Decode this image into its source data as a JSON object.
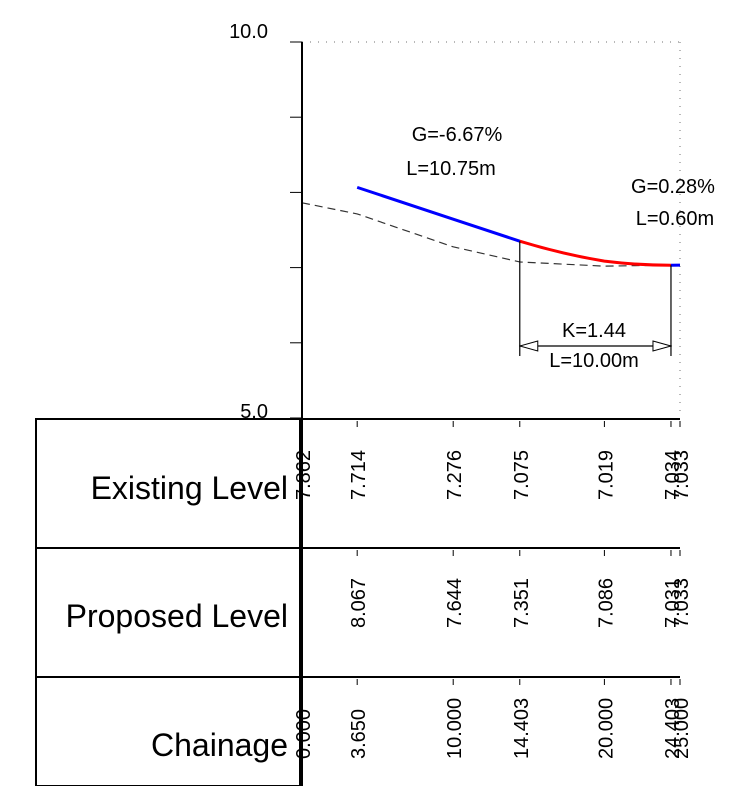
{
  "profile": {
    "y_axis": {
      "top_label": "10.0",
      "bottom_label": "5.0",
      "range": [
        5.0,
        10.0
      ],
      "tick_step": 1.0
    },
    "x_range": [
      0,
      25
    ],
    "colors": {
      "straight_grade": "#0000ff",
      "vertical_curve": "#ff0000",
      "existing_ground": "#000000",
      "grid": "#000000",
      "background": "#ffffff"
    },
    "grade_1": {
      "gradient_text": "G=-6.67%",
      "length_text": "L=10.75m"
    },
    "grade_2": {
      "gradient_text": "G=0.28%",
      "length_text": "L=0.60m"
    },
    "curve": {
      "k_text": "K=1.44",
      "length_text": "L=10.00m",
      "start_chainage": 14.403,
      "end_chainage": 24.403
    }
  },
  "chart_data": {
    "type": "line",
    "x_axis": "chainage",
    "ylim": [
      5.0,
      10.0
    ],
    "xlim": [
      0,
      25
    ],
    "series": [
      {
        "name": "Existing Level",
        "x": [
          0.0,
          3.65,
          10.0,
          14.403,
          20.0,
          24.403,
          25.0
        ],
        "y": [
          7.862,
          7.714,
          7.276,
          7.075,
          7.019,
          7.034,
          7.033
        ]
      },
      {
        "name": "Proposed Level",
        "x": [
          3.65,
          10.0,
          14.403,
          20.0,
          24.403,
          25.0
        ],
        "y": [
          8.067,
          7.644,
          7.351,
          7.086,
          7.031,
          7.033
        ]
      }
    ]
  },
  "band_table": {
    "rows": [
      {
        "label": "Existing Level",
        "entries": [
          {
            "chainage": 0.0,
            "text": "7.862"
          },
          {
            "chainage": 3.65,
            "text": "7.714"
          },
          {
            "chainage": 10.0,
            "text": "7.276"
          },
          {
            "chainage": 14.403,
            "text": "7.075"
          },
          {
            "chainage": 20.0,
            "text": "7.019"
          },
          {
            "chainage": 24.403,
            "text": "7.034"
          },
          {
            "chainage": 25.0,
            "text": "7.033"
          }
        ]
      },
      {
        "label": "Proposed Level",
        "entries": [
          {
            "chainage": 3.65,
            "text": "8.067"
          },
          {
            "chainage": 10.0,
            "text": "7.644"
          },
          {
            "chainage": 14.403,
            "text": "7.351"
          },
          {
            "chainage": 20.0,
            "text": "7.086"
          },
          {
            "chainage": 24.403,
            "text": "7.031"
          },
          {
            "chainage": 25.0,
            "text": "7.033"
          }
        ]
      },
      {
        "label": "Chainage",
        "entries": [
          {
            "chainage": 0.0,
            "text": "0.000"
          },
          {
            "chainage": 3.65,
            "text": "3.650"
          },
          {
            "chainage": 10.0,
            "text": "10.000"
          },
          {
            "chainage": 14.403,
            "text": "14.403"
          },
          {
            "chainage": 20.0,
            "text": "20.000"
          },
          {
            "chainage": 24.403,
            "text": "24.403"
          },
          {
            "chainage": 25.0,
            "text": "25.000"
          }
        ]
      }
    ]
  }
}
